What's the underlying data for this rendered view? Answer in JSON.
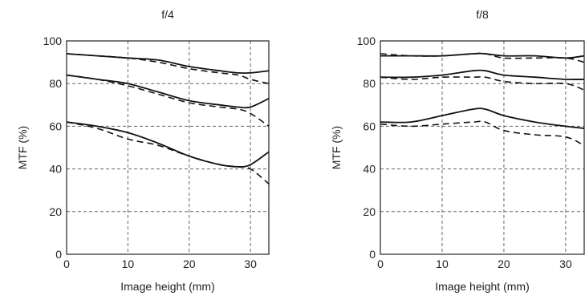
{
  "chart_data": [
    {
      "type": "line",
      "title": "f/4",
      "xlabel": "Image height (mm)",
      "ylabel": "MTF (%)",
      "xlim": [
        0,
        33
      ],
      "ylim": [
        0,
        100
      ],
      "xticks": [
        "0",
        "10",
        "20",
        "30"
      ],
      "yticks": [
        "0",
        "20",
        "40",
        "60",
        "80",
        "100"
      ],
      "grid": true,
      "series": [
        {
          "style": "solid",
          "x": [
            0,
            5,
            10,
            15,
            20,
            25,
            28,
            30,
            33
          ],
          "y": [
            94,
            93,
            92,
            91,
            88,
            86,
            85,
            85,
            86
          ]
        },
        {
          "style": "dashed",
          "x": [
            0,
            5,
            10,
            15,
            20,
            25,
            28,
            30,
            33
          ],
          "y": [
            94,
            93,
            92,
            90,
            87,
            85,
            84,
            82,
            80
          ]
        },
        {
          "style": "solid",
          "x": [
            0,
            5,
            10,
            15,
            20,
            25,
            28,
            30,
            33
          ],
          "y": [
            84,
            82,
            80,
            76,
            72,
            70,
            69,
            69,
            73
          ]
        },
        {
          "style": "dashed",
          "x": [
            0,
            5,
            10,
            15,
            20,
            25,
            28,
            30,
            33
          ],
          "y": [
            84,
            82,
            79,
            75,
            71,
            69,
            68,
            66,
            60
          ]
        },
        {
          "style": "solid",
          "x": [
            0,
            5,
            10,
            15,
            20,
            25,
            28,
            30,
            33
          ],
          "y": [
            62,
            60,
            57,
            52,
            46,
            42,
            41,
            42,
            48
          ]
        },
        {
          "style": "dashed",
          "x": [
            0,
            5,
            10,
            15,
            20,
            25,
            28,
            30,
            33
          ],
          "y": [
            62,
            59,
            54,
            51,
            46,
            42,
            41,
            40,
            33
          ]
        }
      ]
    },
    {
      "type": "line",
      "title": "f/8",
      "xlabel": "Image height (mm)",
      "ylabel": "MTF (%)",
      "xlim": [
        0,
        33
      ],
      "ylim": [
        0,
        100
      ],
      "xticks": [
        "0",
        "10",
        "20",
        "30"
      ],
      "yticks": [
        "0",
        "20",
        "40",
        "60",
        "80",
        "100"
      ],
      "grid": true,
      "series": [
        {
          "style": "solid",
          "x": [
            0,
            5,
            10,
            15,
            17,
            20,
            25,
            30,
            33
          ],
          "y": [
            93,
            93,
            93,
            94,
            94,
            93,
            93,
            92,
            93
          ]
        },
        {
          "style": "dashed",
          "x": [
            0,
            5,
            10,
            15,
            17,
            20,
            25,
            30,
            33
          ],
          "y": [
            94,
            93,
            93,
            94,
            94,
            92,
            92,
            92,
            90
          ]
        },
        {
          "style": "solid",
          "x": [
            0,
            5,
            10,
            15,
            17,
            20,
            25,
            30,
            33
          ],
          "y": [
            83,
            83,
            84,
            86,
            86,
            84,
            83,
            82,
            82
          ]
        },
        {
          "style": "dashed",
          "x": [
            0,
            5,
            10,
            15,
            17,
            20,
            25,
            30,
            33
          ],
          "y": [
            83,
            82,
            83,
            83,
            83,
            81,
            80,
            80,
            77
          ]
        },
        {
          "style": "solid",
          "x": [
            0,
            5,
            10,
            15,
            17,
            20,
            25,
            30,
            33
          ],
          "y": [
            62,
            62,
            65,
            68,
            68,
            65,
            62,
            60,
            59
          ]
        },
        {
          "style": "dashed",
          "x": [
            0,
            5,
            10,
            15,
            17,
            20,
            25,
            30,
            33
          ],
          "y": [
            61,
            60,
            61,
            62,
            62,
            58,
            56,
            55,
            51
          ]
        }
      ]
    }
  ]
}
